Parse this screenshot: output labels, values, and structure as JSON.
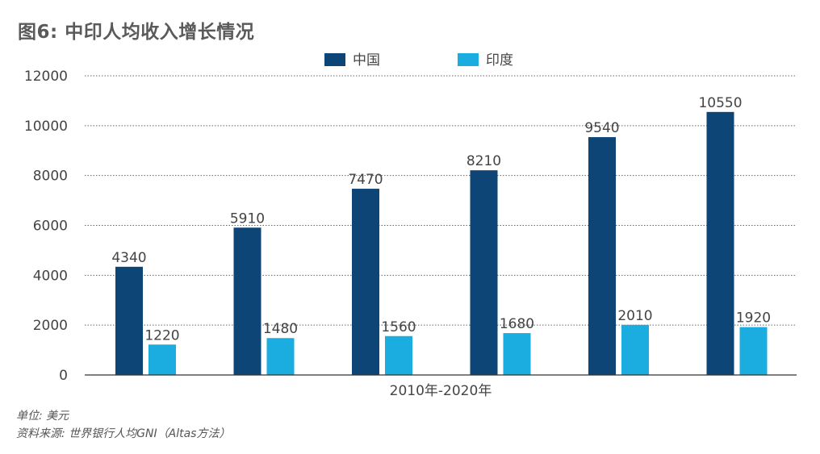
{
  "title": "图6: 中印人均收入增长情况",
  "footnotes": {
    "unit": "单位: 美元",
    "source": "资料来源: 世界银行人均GNI（Altas方法）"
  },
  "chart_data": {
    "type": "bar",
    "title": "图6: 中印人均收入增长情况",
    "xlabel": "2010年-2020年",
    "ylabel": "",
    "categories": [
      "",
      "",
      "",
      "",
      "",
      ""
    ],
    "series": [
      {
        "name": "中国",
        "color": "#0d4577",
        "values": [
          4340,
          5910,
          7470,
          8210,
          9540,
          10550
        ]
      },
      {
        "name": "印度",
        "color": "#1bade0",
        "values": [
          1220,
          1480,
          1560,
          1680,
          2010,
          1920
        ]
      }
    ],
    "ylim": [
      0,
      12000
    ],
    "yticks": [
      0,
      2000,
      4000,
      6000,
      8000,
      10000,
      12000
    ],
    "grid": true,
    "legend": "top-center",
    "data_labels": true
  }
}
